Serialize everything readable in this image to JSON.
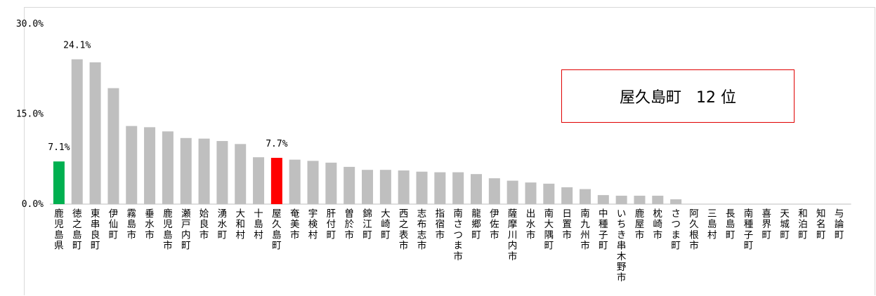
{
  "chart_data": {
    "type": "bar",
    "ylim": [
      0,
      30
    ],
    "yticks": [
      "0.0%",
      "15.0%",
      "30.0%"
    ],
    "grid": false,
    "categories": [
      "鹿児島県",
      "徳之島町",
      "東串良町",
      "伊仙町",
      "霧島市",
      "垂水市",
      "鹿児島市",
      "瀬戸内町",
      "姶良市",
      "湧水町",
      "大和村",
      "十島村",
      "屋久島町",
      "奄美市",
      "宇検村",
      "肝付町",
      "曽於市",
      "錦江町",
      "大崎町",
      "西之表市",
      "志布志市",
      "指宿市",
      "南さつま市",
      "龍郷町",
      "伊佐市",
      "薩摩川内市",
      "出水市",
      "南大隅町",
      "日置市",
      "南九州市",
      "中種子町",
      "いちき串木野市",
      "鹿屋市",
      "枕崎市",
      "さつま町",
      "阿久根市",
      "三島村",
      "長島町",
      "南種子町",
      "喜界町",
      "天城町",
      "和泊町",
      "知名町",
      "与論町"
    ],
    "values": [
      7.1,
      24.1,
      23.6,
      19.3,
      13.0,
      12.8,
      12.1,
      11.0,
      10.9,
      10.5,
      10.0,
      7.8,
      7.7,
      7.4,
      7.2,
      6.9,
      6.2,
      5.7,
      5.7,
      5.6,
      5.4,
      5.3,
      5.3,
      5.0,
      4.3,
      3.9,
      3.6,
      3.4,
      2.8,
      2.5,
      1.5,
      1.4,
      1.4,
      1.4,
      0.8,
      0,
      0,
      0,
      0,
      0,
      0,
      0,
      0,
      0
    ],
    "data_labels": [
      {
        "index": 0,
        "text": "7.1%"
      },
      {
        "index": 1,
        "text": "24.1%"
      },
      {
        "index": 12,
        "text": "7.7%"
      }
    ],
    "colors": {
      "default": "#bfbfbf",
      "prefecture": "#00b050",
      "highlight": "#ff0000",
      "prefecture_index": 0,
      "highlight_index": 12
    }
  },
  "annotation": {
    "town": "屋久島町",
    "rank": "12 位"
  }
}
